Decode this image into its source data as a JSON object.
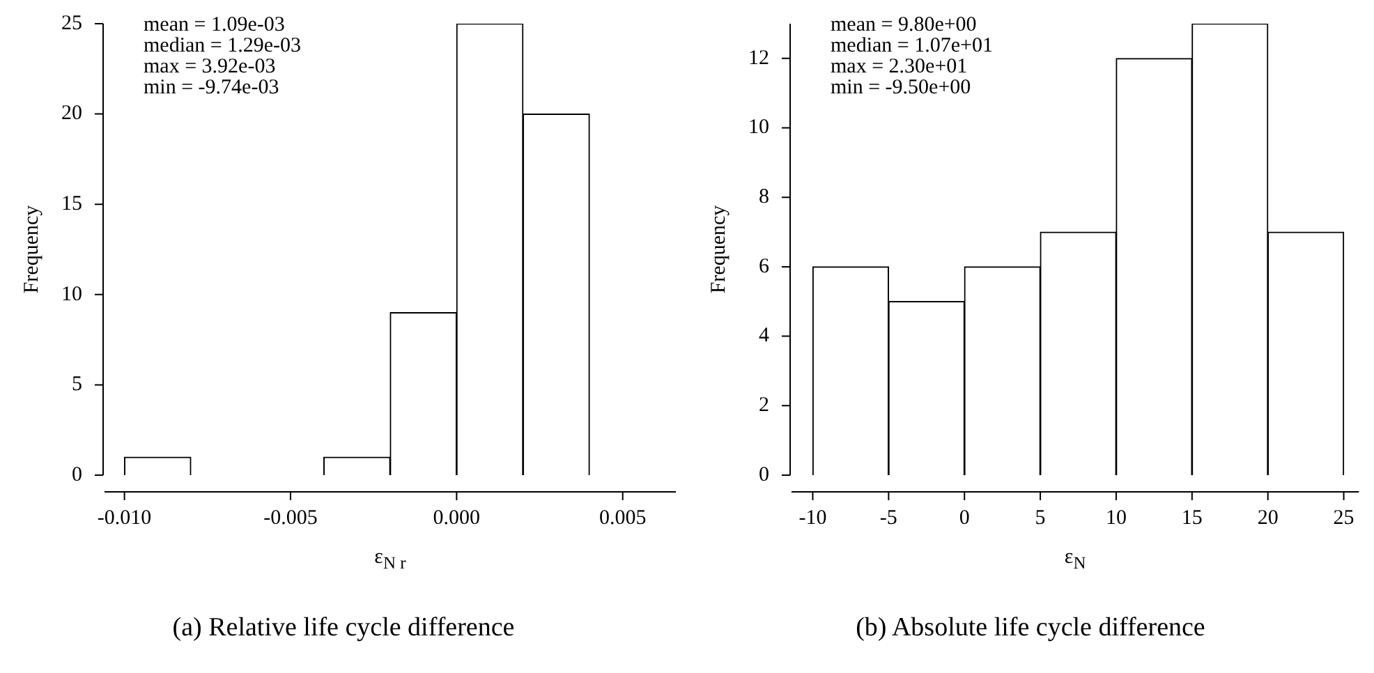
{
  "chart_data": [
    {
      "type": "histogram",
      "xlabel": "ε$_{N r}$",
      "ylabel": "Frequency",
      "bins": [
        -0.01,
        -0.008,
        -0.006,
        -0.004,
        -0.002,
        0.0,
        0.002,
        0.004,
        0.006
      ],
      "values": [
        1,
        0,
        0,
        1,
        9,
        25,
        20,
        0
      ],
      "color": "#ffffff",
      "xlim": [
        -0.0106,
        0.0066
      ],
      "xticks": [
        {
          "value": -0.01,
          "label": "-0.010"
        },
        {
          "value": -0.005,
          "label": "-0.005"
        },
        {
          "value": 0,
          "label": "0.000"
        },
        {
          "value": 0.005,
          "label": "0.005"
        }
      ],
      "ylim": [
        0,
        25
      ],
      "yticks": [
        0,
        5,
        10,
        15,
        20,
        25
      ],
      "grid": false,
      "legend": false,
      "annotations": [
        "mean = 1.09e-03",
        "median = 1.29e-03",
        "max = 3.92e-03",
        "min = -9.74e-03",
        "(a) Relative life cycle difference"
      ]
    },
    {
      "type": "histogram",
      "xlabel": "ε$_{N}$",
      "ylabel": "Frequency",
      "bins": [
        -10,
        -5,
        0,
        5,
        10,
        15,
        20,
        25
      ],
      "values": [
        6,
        5,
        6,
        7,
        12,
        13,
        7
      ],
      "color": "#ffffff",
      "xlim": [
        -11.4,
        26
      ],
      "xticks": [
        -10,
        -5,
        0,
        5,
        10,
        15,
        20,
        25
      ],
      "ylim": [
        0,
        13
      ],
      "yticks": [
        0,
        2,
        4,
        6,
        8,
        10,
        12
      ],
      "grid": false,
      "legend": false,
      "annotations": [
        "mean = 9.80e+00",
        "median = 1.07e+01",
        "max = 2.30e+01",
        "min = -9.50e+00",
        "(b) Absolute life cycle difference"
      ]
    }
  ]
}
